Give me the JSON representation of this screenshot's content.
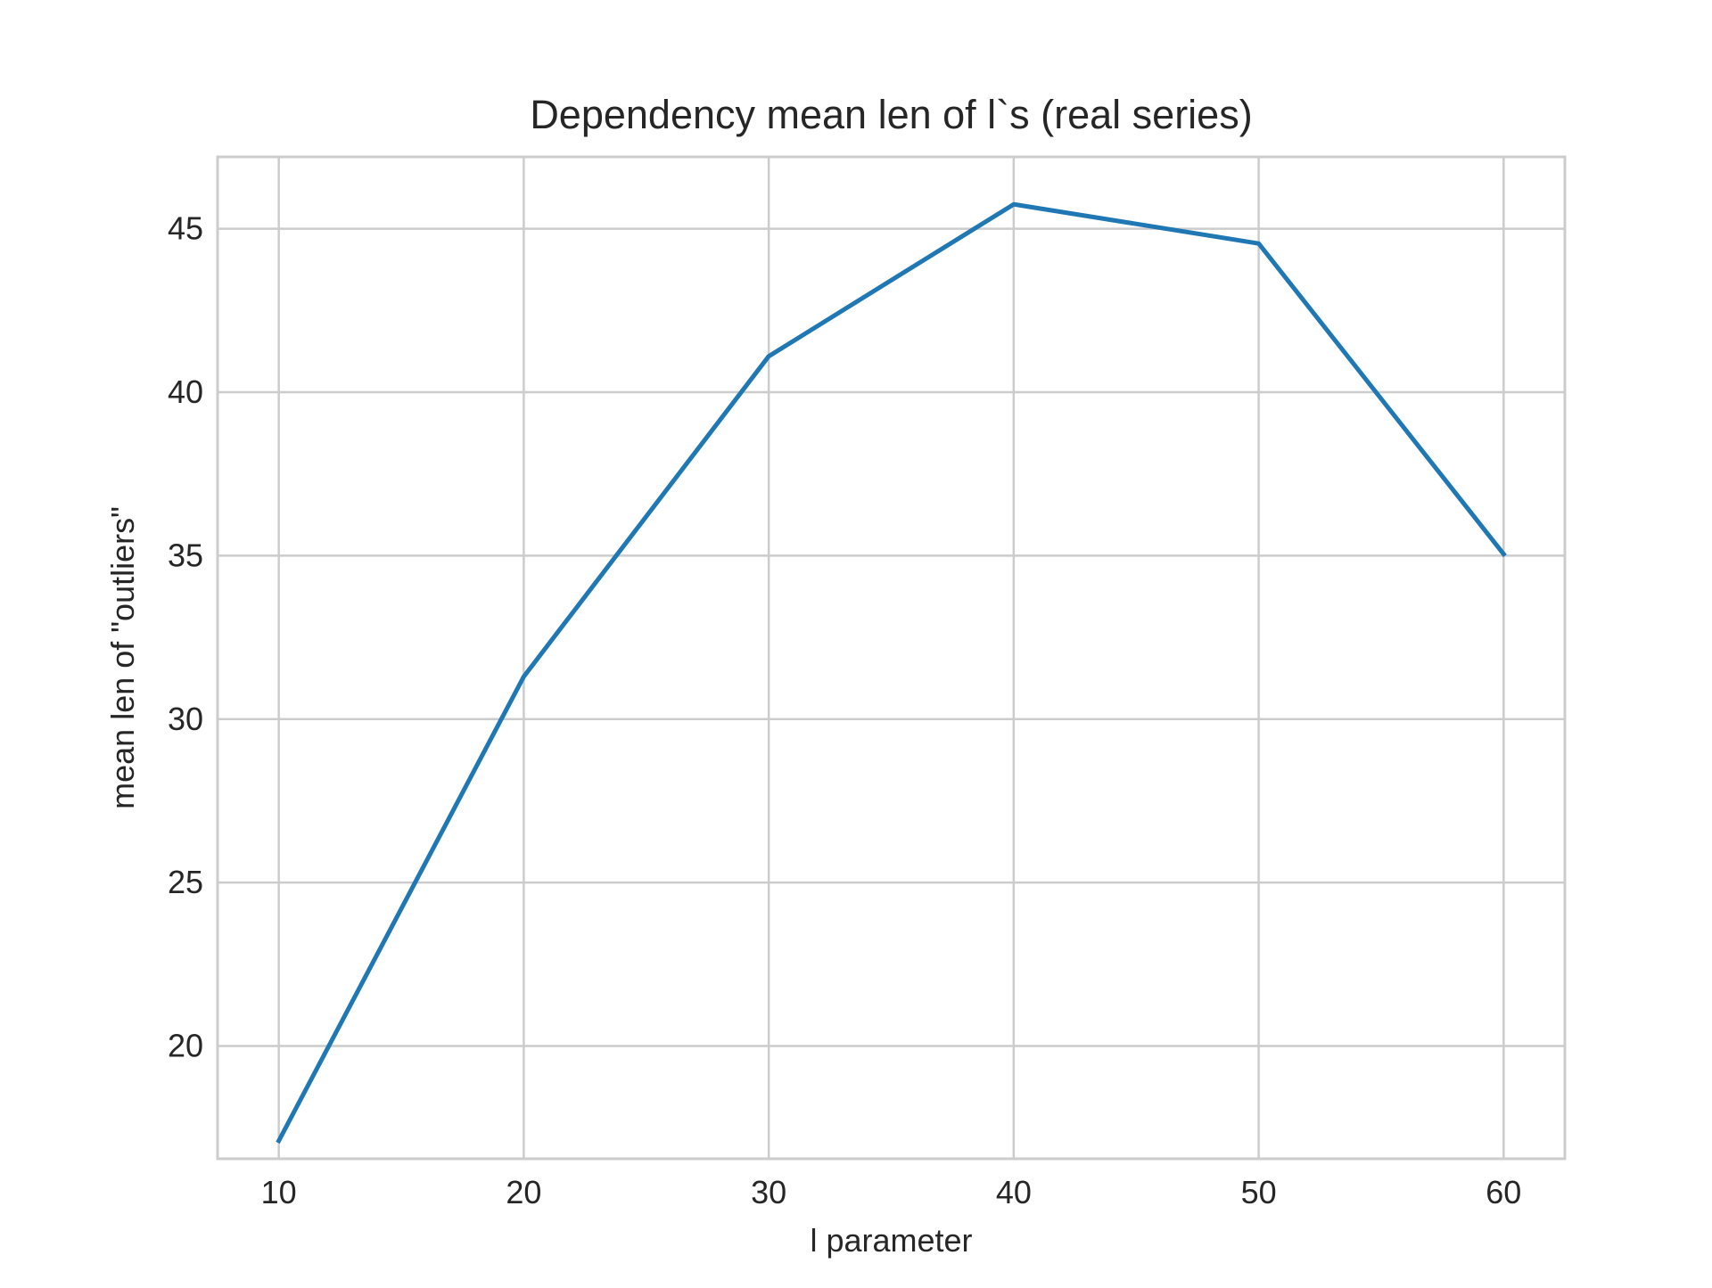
{
  "chart_data": {
    "type": "line",
    "title": "Dependency mean len of l`s (real series)",
    "xlabel": "l parameter",
    "ylabel": "mean len of \"outliers\"",
    "x": [
      10,
      20,
      30,
      40,
      50,
      60
    ],
    "series": [
      {
        "values": [
          17.1,
          31.3,
          41.1,
          45.75,
          44.55,
          35.05
        ],
        "color": "#1f77b4"
      }
    ],
    "xlim": [
      7.5,
      62.5
    ],
    "ylim": [
      16.55,
      47.2
    ],
    "xticks": [
      10,
      20,
      30,
      40,
      50,
      60
    ],
    "yticks": [
      20,
      25,
      30,
      35,
      40,
      45
    ],
    "grid": true,
    "style": "whitegrid",
    "grid_color": "#cccccc",
    "text_color": "#262626"
  }
}
